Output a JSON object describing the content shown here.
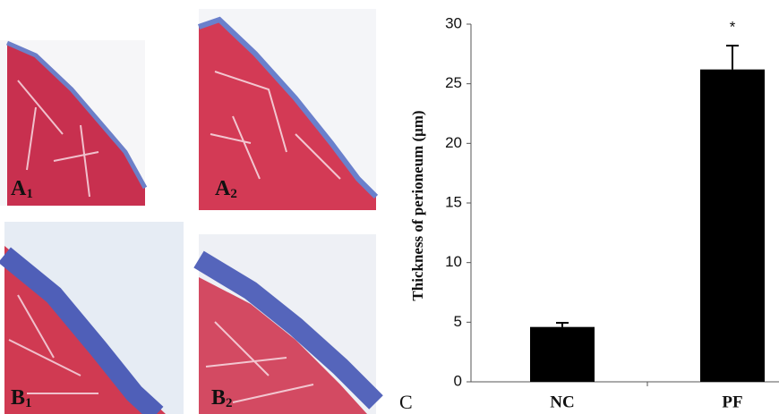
{
  "panel_labels": [
    {
      "letter": "A",
      "subscript": "1"
    },
    {
      "letter": "A",
      "subscript": "2"
    },
    {
      "letter": "B",
      "subscript": "1"
    },
    {
      "letter": "B",
      "subscript": "2"
    }
  ],
  "chart_data": {
    "type": "bar",
    "panel_label": "C",
    "y_label": "Thickness of perioneum (μm)",
    "categories": [
      "NC",
      "PF"
    ],
    "values": [
      4.6,
      26.2
    ],
    "errors": [
      0.35,
      2.0
    ],
    "color": "#000000",
    "annotation": "*",
    "ylim": [
      0,
      30
    ],
    "yticks": [
      0,
      5,
      10,
      15,
      20,
      25,
      30
    ],
    "grid": false
  }
}
